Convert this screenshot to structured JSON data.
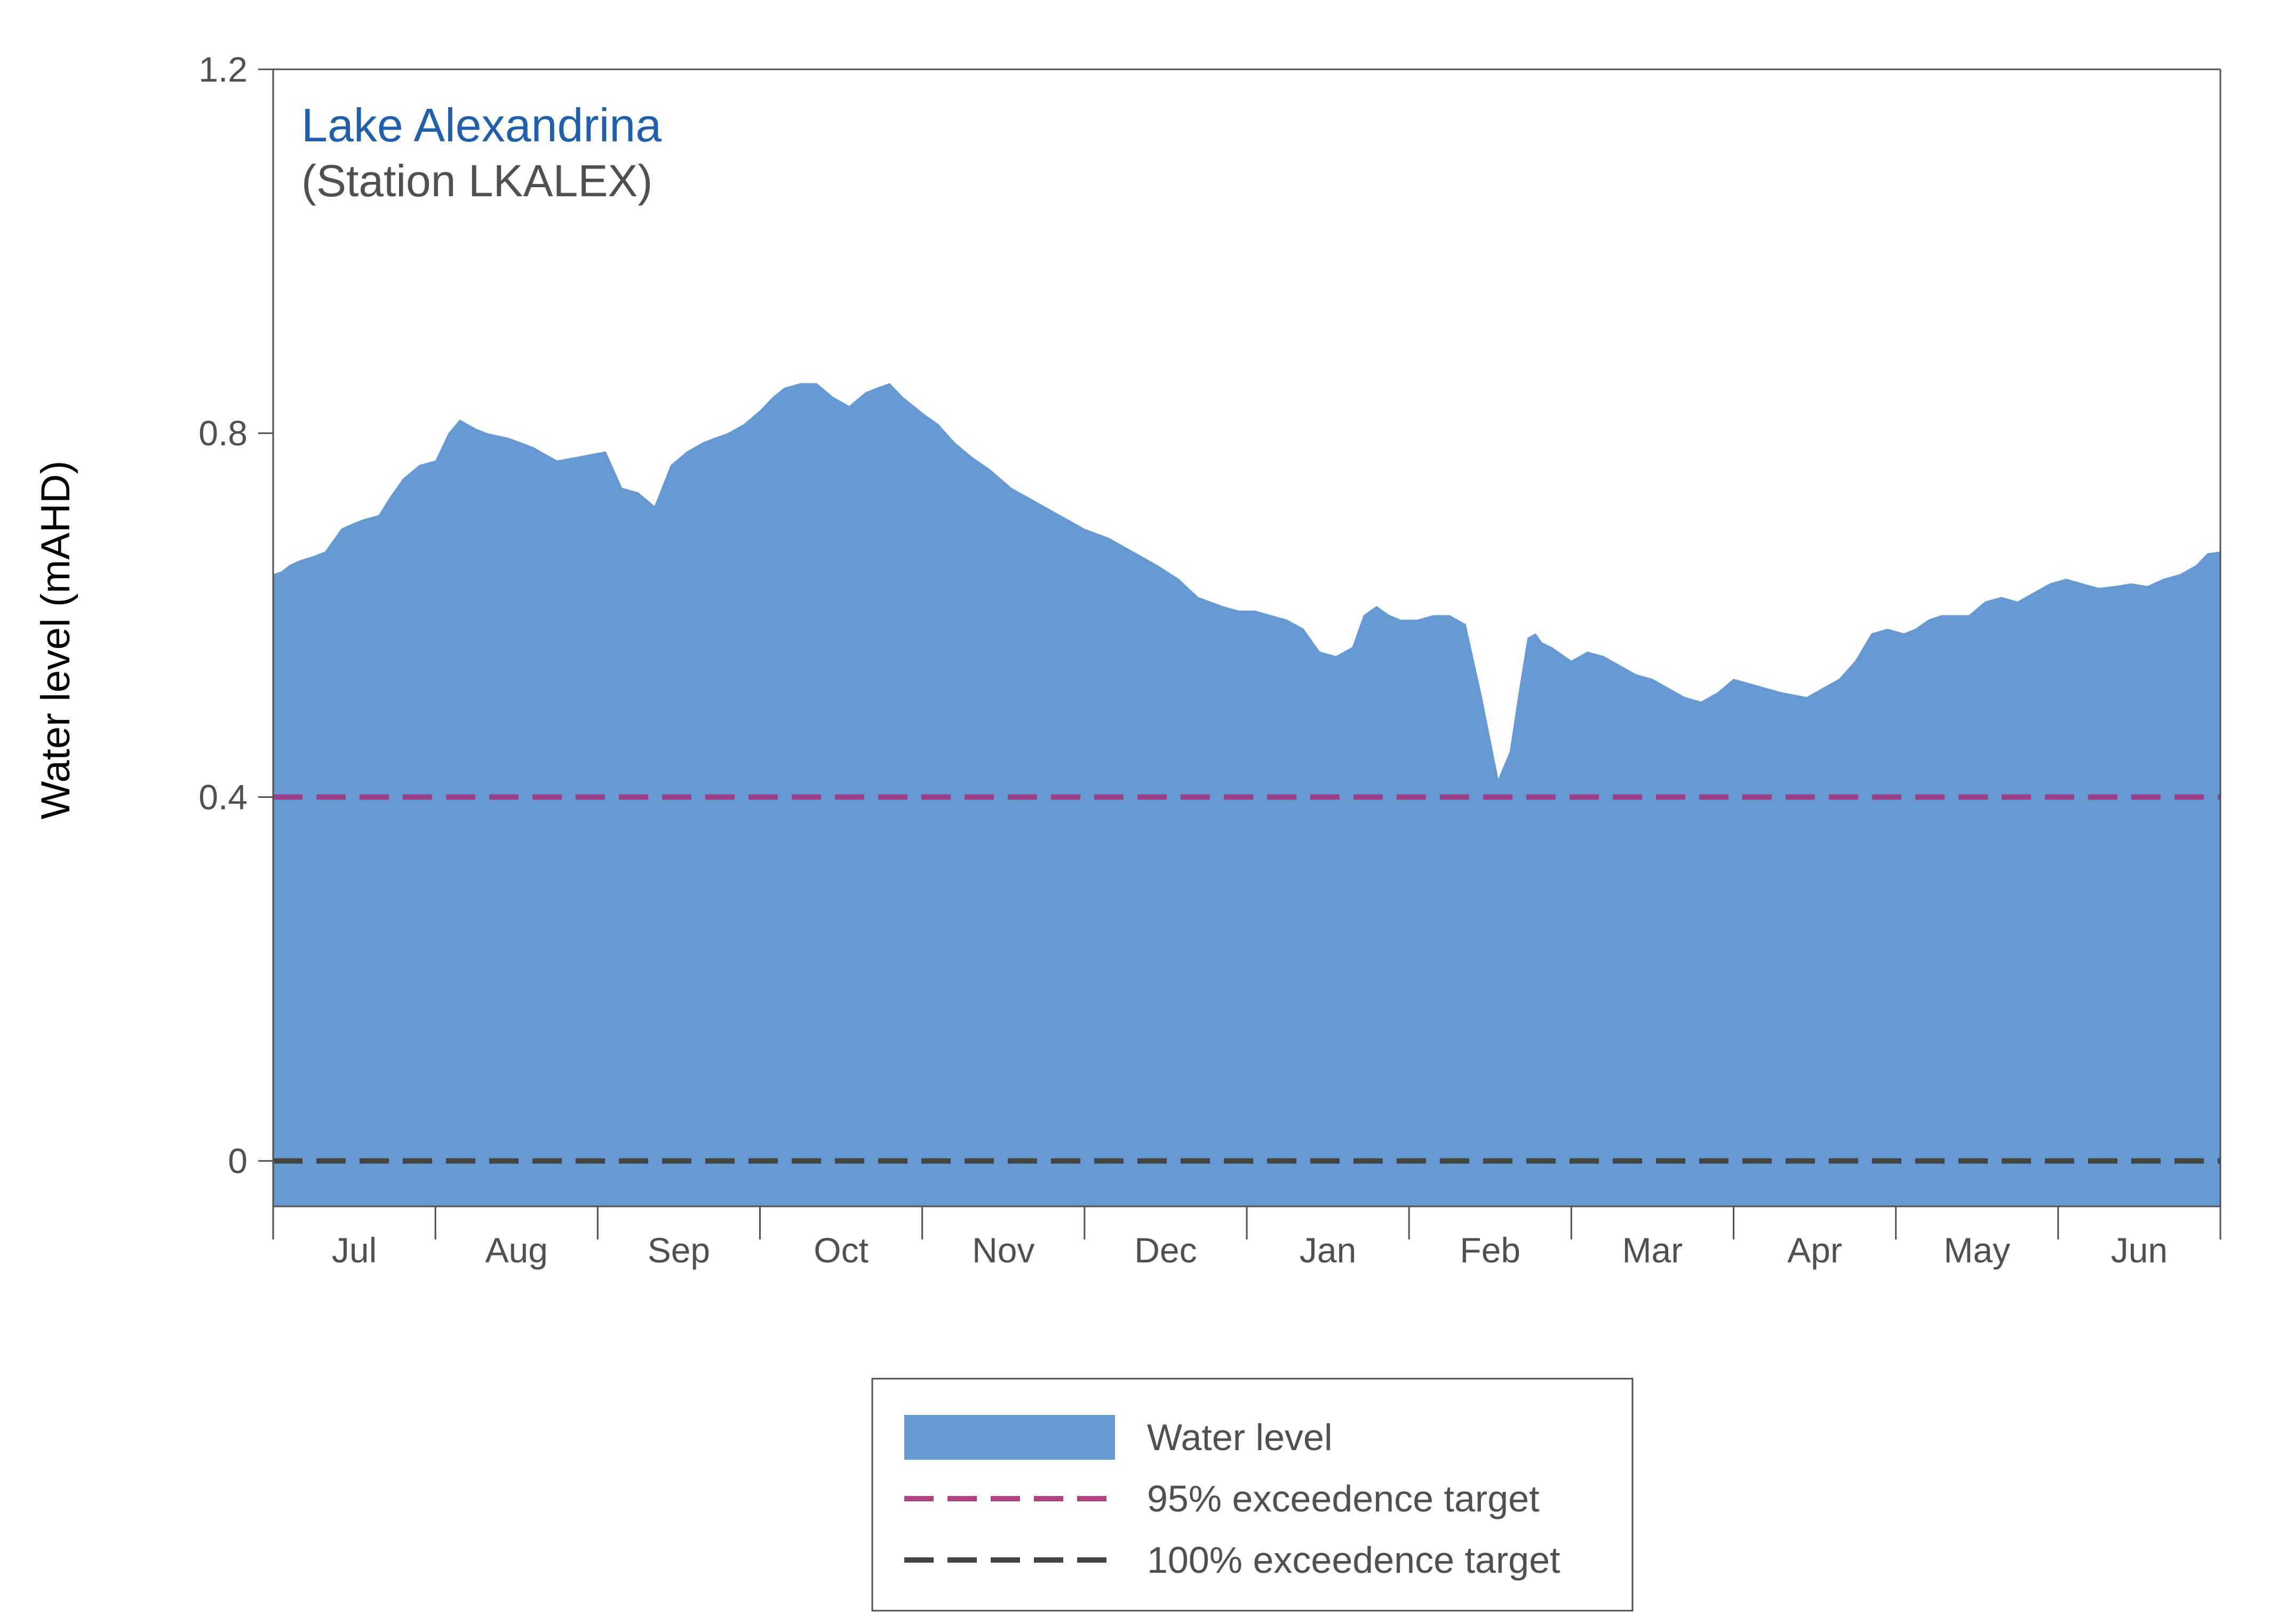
{
  "chart_data": {
    "type": "area",
    "title": "Lake Alexandrina",
    "subtitle": "(Station LKALEX)",
    "xlabel": "",
    "ylabel": "Water level (mAHD)",
    "ylim": [
      -0.05,
      1.2
    ],
    "xlim": [
      0,
      12
    ],
    "yticks": [
      {
        "value": 0,
        "label": "0"
      },
      {
        "value": 0.4,
        "label": "0.4"
      },
      {
        "value": 0.8,
        "label": "0.8"
      },
      {
        "value": 1.2,
        "label": "1.2"
      }
    ],
    "categories": [
      "Jul",
      "Aug",
      "Sep",
      "Oct",
      "Nov",
      "Dec",
      "Jan",
      "Feb",
      "Mar",
      "Apr",
      "May",
      "Jun"
    ],
    "series": [
      {
        "name": "Water level",
        "kind": "area",
        "color": "#6699d2",
        "x": [
          0,
          0.05,
          0.1,
          0.16,
          0.25,
          0.32,
          0.38,
          0.42,
          0.48,
          0.55,
          0.65,
          0.72,
          0.8,
          0.9,
          1.0,
          1.08,
          1.15,
          1.2,
          1.25,
          1.32,
          1.45,
          1.6,
          1.75,
          1.9,
          2.05,
          2.15,
          2.25,
          2.35,
          2.45,
          2.55,
          2.6,
          2.65,
          2.72,
          2.8,
          2.9,
          3.0,
          3.08,
          3.15,
          3.25,
          3.35,
          3.45,
          3.55,
          3.65,
          3.72,
          3.8,
          3.88,
          3.95,
          4.02,
          4.1,
          4.2,
          4.3,
          4.42,
          4.55,
          4.65,
          4.75,
          4.85,
          5.0,
          5.15,
          5.3,
          5.45,
          5.58,
          5.7,
          5.85,
          5.95,
          6.05,
          6.15,
          6.25,
          6.35,
          6.45,
          6.55,
          6.65,
          6.72,
          6.8,
          6.88,
          6.95,
          7.05,
          7.15,
          7.25,
          7.35,
          7.45,
          7.55,
          7.62,
          7.68,
          7.73,
          7.78,
          7.82,
          7.88,
          7.92,
          8.0,
          8.1,
          8.2,
          8.3,
          8.4,
          8.5,
          8.6,
          8.7,
          8.8,
          8.9,
          9.0,
          9.1,
          9.2,
          9.3,
          9.45,
          9.55,
          9.65,
          9.75,
          9.85,
          9.95,
          10.05,
          10.12,
          10.2,
          10.28,
          10.35,
          10.45,
          10.55,
          10.65,
          10.75,
          10.85,
          10.95,
          11.05,
          11.15,
          11.25,
          11.35,
          11.45,
          11.55,
          11.65,
          11.75,
          11.85,
          11.92,
          12.0
        ],
        "y": [
          0.645,
          0.648,
          0.655,
          0.66,
          0.665,
          0.67,
          0.685,
          0.695,
          0.7,
          0.705,
          0.71,
          0.73,
          0.75,
          0.765,
          0.77,
          0.8,
          0.815,
          0.81,
          0.805,
          0.8,
          0.795,
          0.785,
          0.77,
          0.775,
          0.78,
          0.74,
          0.735,
          0.72,
          0.765,
          0.78,
          0.785,
          0.79,
          0.795,
          0.8,
          0.81,
          0.825,
          0.84,
          0.85,
          0.855,
          0.855,
          0.84,
          0.83,
          0.845,
          0.85,
          0.855,
          0.84,
          0.83,
          0.82,
          0.81,
          0.79,
          0.775,
          0.76,
          0.74,
          0.73,
          0.72,
          0.71,
          0.695,
          0.685,
          0.67,
          0.655,
          0.64,
          0.62,
          0.61,
          0.605,
          0.605,
          0.6,
          0.595,
          0.585,
          0.56,
          0.555,
          0.565,
          0.6,
          0.61,
          0.6,
          0.595,
          0.595,
          0.6,
          0.6,
          0.59,
          0.51,
          0.42,
          0.45,
          0.52,
          0.575,
          0.58,
          0.57,
          0.565,
          0.56,
          0.55,
          0.56,
          0.555,
          0.545,
          0.535,
          0.53,
          0.52,
          0.51,
          0.505,
          0.515,
          0.53,
          0.525,
          0.52,
          0.515,
          0.51,
          0.52,
          0.53,
          0.55,
          0.58,
          0.585,
          0.58,
          0.585,
          0.595,
          0.6,
          0.6,
          0.6,
          0.615,
          0.62,
          0.615,
          0.625,
          0.635,
          0.64,
          0.635,
          0.63,
          0.632,
          0.635,
          0.632,
          0.64,
          0.645,
          0.655,
          0.668,
          0.67
        ]
      },
      {
        "name": "95% exceedence target",
        "kind": "dashed-line",
        "color": "#9c3f86",
        "value": 0.4
      },
      {
        "name": "100% exceedence target",
        "kind": "dashed-line",
        "color": "#444444",
        "value": 0
      }
    ],
    "legend": {
      "position": "bottom-center",
      "items": [
        {
          "label": "Water level",
          "swatch": "area",
          "color": "#6699d2"
        },
        {
          "label": "95% exceedence target",
          "swatch": "dash",
          "color": "#b3407f"
        },
        {
          "label": "100% exceedence target",
          "swatch": "dash",
          "color": "#444444"
        }
      ]
    },
    "grid": false,
    "colors": {
      "title": "#1f5fad",
      "axis": "#505050",
      "tick_text": "#505050",
      "frame": "#505050"
    }
  }
}
